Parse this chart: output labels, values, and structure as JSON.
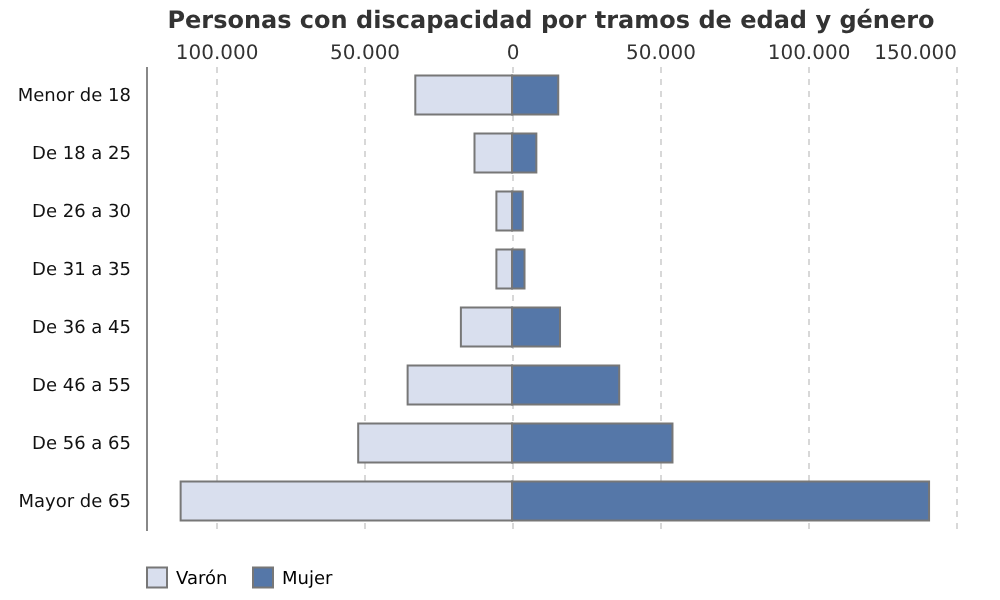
{
  "chart_data": {
    "type": "bar",
    "orientation": "horizontal",
    "stacked": true,
    "title": "Personas con discapacidad por tramos de edad y género",
    "categories": [
      "Menor de 18",
      "De 18 a 25",
      "De 26 a 30",
      "De 31 a 35",
      "De 36 a 45",
      "De 46 a 55",
      "De 56 a 65",
      "Mayor de 65"
    ],
    "series": [
      {
        "name": "Varón",
        "color": "#d9dfee",
        "values": [
          -32700,
          -12700,
          -5300,
          -5300,
          -17300,
          -35300,
          -52000,
          -112000
        ]
      },
      {
        "name": "Mujer",
        "color": "#5577a8",
        "values": [
          15600,
          8200,
          3600,
          4200,
          16200,
          36200,
          54200,
          140900
        ]
      }
    ],
    "xlim": [
      -123700,
      150000
    ],
    "xticks": [
      {
        "value": -100000,
        "label": "100.000"
      },
      {
        "value": -50000,
        "label": "50.000"
      },
      0,
      {
        "value": 50000,
        "label": "50.000"
      },
      {
        "value": 100000,
        "label": "100.000"
      },
      {
        "value": 150000,
        "label": "150.000"
      }
    ],
    "grid": "x",
    "legend": "bottom"
  }
}
